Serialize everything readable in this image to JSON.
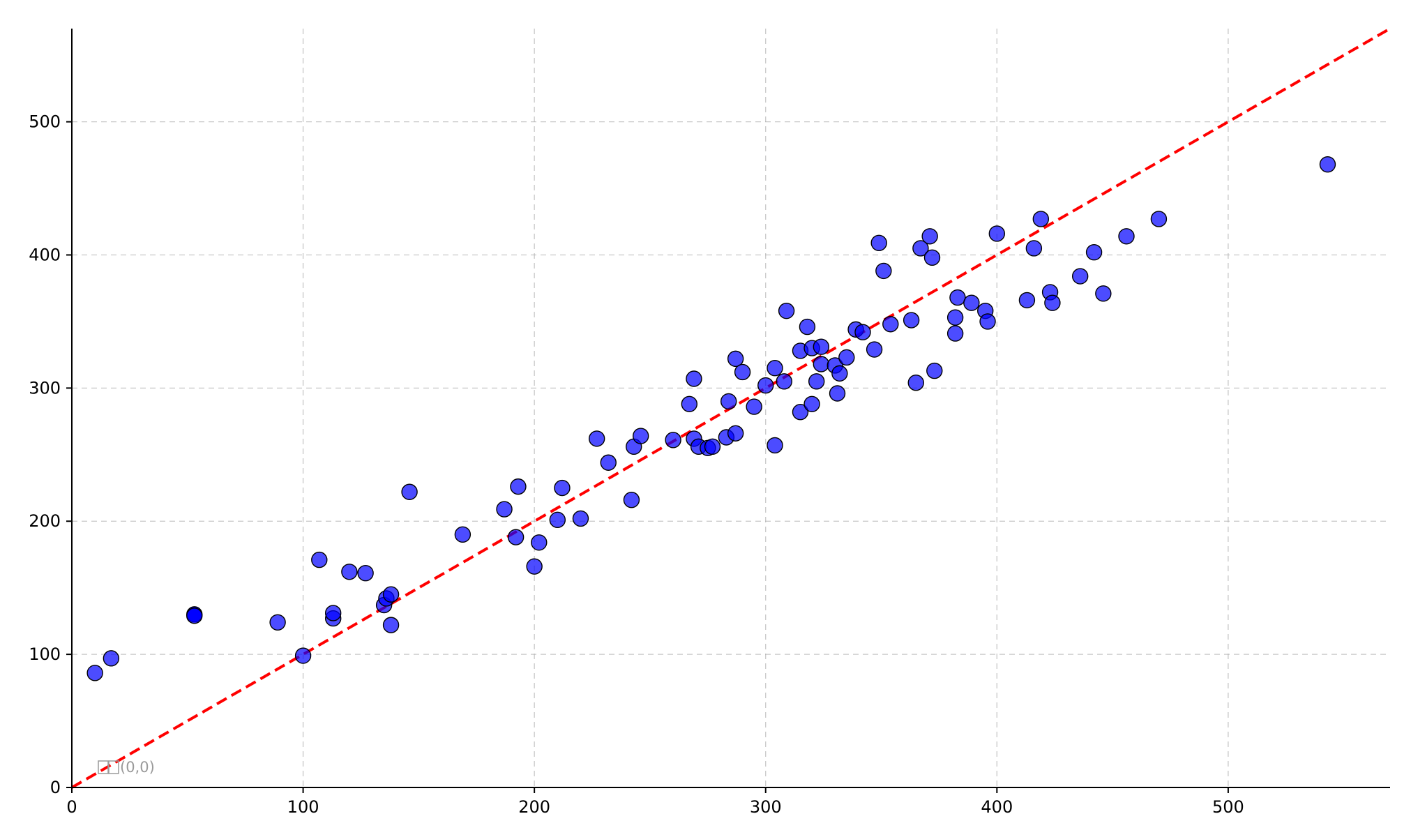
{
  "chart_data": {
    "type": "scatter",
    "title": "",
    "xlabel": "",
    "ylabel": "",
    "xlim": [
      0,
      570
    ],
    "ylim": [
      0,
      570
    ],
    "x_ticks": [
      0,
      100,
      200,
      300,
      400,
      500
    ],
    "y_ticks": [
      0,
      100,
      200,
      300,
      400,
      500
    ],
    "grid": true,
    "point_color": "#0000ff",
    "reference_line": {
      "type": "y=x",
      "color": "#ff0000",
      "style": "dashed",
      "x": [
        0,
        570
      ],
      "y": [
        0,
        570
      ]
    },
    "annotation": {
      "text": "(0,0)",
      "x": 0,
      "y": 0
    },
    "points": [
      [
        10,
        86
      ],
      [
        17,
        97
      ],
      [
        53,
        130
      ],
      [
        53,
        129
      ],
      [
        89,
        124
      ],
      [
        100,
        99
      ],
      [
        107,
        171
      ],
      [
        113,
        127
      ],
      [
        113,
        131
      ],
      [
        120,
        162
      ],
      [
        127,
        161
      ],
      [
        135,
        137
      ],
      [
        136,
        142
      ],
      [
        138,
        145
      ],
      [
        138,
        122
      ],
      [
        146,
        222
      ],
      [
        169,
        190
      ],
      [
        187,
        209
      ],
      [
        192,
        188
      ],
      [
        193,
        226
      ],
      [
        200,
        166
      ],
      [
        202,
        184
      ],
      [
        210,
        201
      ],
      [
        212,
        225
      ],
      [
        220,
        202
      ],
      [
        227,
        262
      ],
      [
        232,
        244
      ],
      [
        242,
        216
      ],
      [
        243,
        256
      ],
      [
        246,
        264
      ],
      [
        260,
        261
      ],
      [
        267,
        288
      ],
      [
        269,
        262
      ],
      [
        269,
        307
      ],
      [
        271,
        256
      ],
      [
        275,
        255
      ],
      [
        277,
        256
      ],
      [
        283,
        263
      ],
      [
        284,
        290
      ],
      [
        287,
        266
      ],
      [
        287,
        322
      ],
      [
        290,
        312
      ],
      [
        295,
        286
      ],
      [
        300,
        302
      ],
      [
        304,
        315
      ],
      [
        304,
        257
      ],
      [
        308,
        305
      ],
      [
        309,
        358
      ],
      [
        315,
        328
      ],
      [
        315,
        282
      ],
      [
        318,
        346
      ],
      [
        320,
        330
      ],
      [
        320,
        288
      ],
      [
        322,
        305
      ],
      [
        324,
        331
      ],
      [
        324,
        318
      ],
      [
        330,
        317
      ],
      [
        331,
        296
      ],
      [
        332,
        311
      ],
      [
        335,
        323
      ],
      [
        339,
        344
      ],
      [
        342,
        342
      ],
      [
        347,
        329
      ],
      [
        349,
        409
      ],
      [
        351,
        388
      ],
      [
        354,
        348
      ],
      [
        363,
        351
      ],
      [
        365,
        304
      ],
      [
        367,
        405
      ],
      [
        371,
        414
      ],
      [
        372,
        398
      ],
      [
        373,
        313
      ],
      [
        382,
        341
      ],
      [
        382,
        353
      ],
      [
        383,
        368
      ],
      [
        389,
        364
      ],
      [
        395,
        358
      ],
      [
        396,
        350
      ],
      [
        400,
        416
      ],
      [
        413,
        366
      ],
      [
        416,
        405
      ],
      [
        419,
        427
      ],
      [
        423,
        372
      ],
      [
        424,
        364
      ],
      [
        436,
        384
      ],
      [
        442,
        402
      ],
      [
        446,
        371
      ],
      [
        456,
        414
      ],
      [
        470,
        427
      ],
      [
        543,
        468
      ]
    ],
    "highlighted_points": [
      [
        53,
        130
      ]
    ]
  }
}
